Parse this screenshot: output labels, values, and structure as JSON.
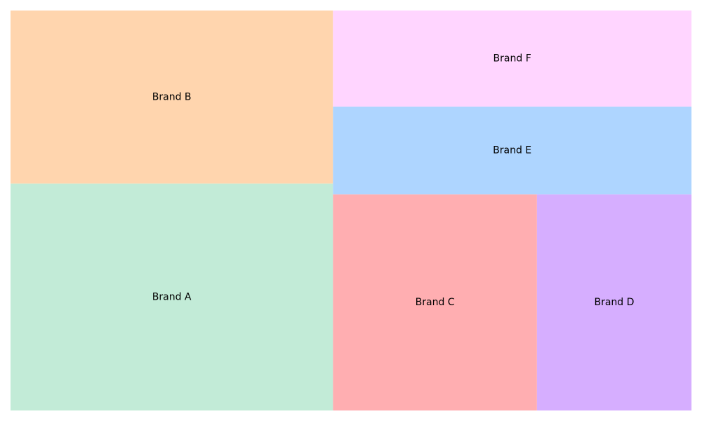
{
  "chart_data": {
    "type": "treemap",
    "title": "",
    "grid": false,
    "legend": "none",
    "categories": [
      "Brand A",
      "Brand B",
      "Brand C",
      "Brand D",
      "Brand E",
      "Brand F"
    ],
    "values": [
      27.4,
      20.9,
      16.5,
      12.5,
      11.8,
      12.9
    ],
    "colors": [
      "#c2ebd7",
      "#ffd5ae",
      "#ffaeb1",
      "#d6aeff",
      "#aed5ff",
      "#ffd5ff"
    ]
  }
}
